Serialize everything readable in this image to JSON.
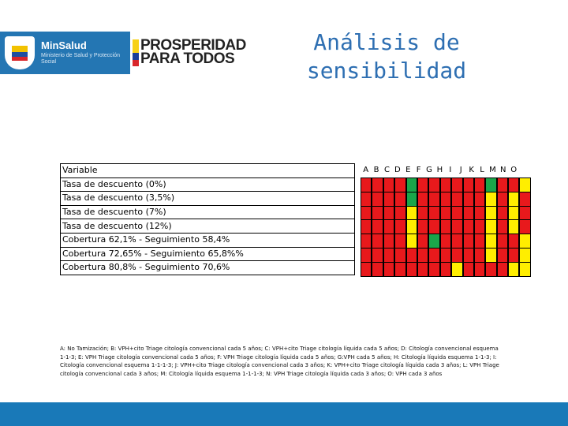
{
  "logo": {
    "minsalud_name": "MinSalud",
    "minsalud_sub": "Ministerio de Salud y Protección Social",
    "pp_line1": "PROSPERIDAD",
    "pp_line2": "PARA TODOS"
  },
  "title": {
    "line1": "Análisis de",
    "line2": "sensibilidad"
  },
  "variables": {
    "header": "Variable",
    "rows": [
      "Tasa de descuento (0%)",
      "Tasa de descuento (3,5%)",
      "Tasa de descuento (7%)",
      "Tasa de descuento (12%)",
      "Cobertura 62,1% - Seguimiento 58,4%",
      "Cobertura 72,65% - Seguimiento 65,8%%",
      "Cobertura 80,8% - Seguimiento 70,6%"
    ]
  },
  "grid": {
    "columns": [
      "A",
      "B",
      "C",
      "D",
      "E",
      "F",
      "G",
      "H",
      "I",
      "J",
      "K",
      "L",
      "M",
      "N",
      "O"
    ],
    "colors": {
      "R": "#e8191c",
      "G": "#1aa64a",
      "Y": "#ffee00",
      "W": "#ffffff"
    },
    "rows": [
      [
        "R",
        "R",
        "R",
        "R",
        "G",
        "R",
        "R",
        "R",
        "R",
        "R",
        "R",
        "G",
        "R",
        "R",
        "Y"
      ],
      [
        "R",
        "R",
        "R",
        "R",
        "G",
        "R",
        "R",
        "R",
        "R",
        "R",
        "R",
        "Y",
        "R",
        "Y",
        "R"
      ],
      [
        "R",
        "R",
        "R",
        "R",
        "Y",
        "R",
        "R",
        "R",
        "R",
        "R",
        "R",
        "Y",
        "R",
        "Y",
        "R"
      ],
      [
        "R",
        "R",
        "R",
        "R",
        "Y",
        "R",
        "R",
        "R",
        "R",
        "R",
        "R",
        "Y",
        "R",
        "Y",
        "R"
      ],
      [
        "R",
        "R",
        "R",
        "R",
        "Y",
        "R",
        "G",
        "R",
        "R",
        "R",
        "R",
        "Y",
        "R",
        "R",
        "Y"
      ],
      [
        "R",
        "R",
        "R",
        "R",
        "R",
        "R",
        "R",
        "R",
        "R",
        "R",
        "R",
        "Y",
        "R",
        "R",
        "Y"
      ],
      [
        "R",
        "R",
        "R",
        "R",
        "R",
        "R",
        "R",
        "R",
        "Y",
        "R",
        "R",
        "R",
        "R",
        "Y",
        "Y"
      ]
    ]
  },
  "footnote": "A: No Tamización; B: VPH+cito Triage citología convencional cada 5 años; C: VPH+cito Triage citología líquida cada 5 años; D: Citología convencional esquema 1-1-3; E: VPH Triage citología convencional cada 5 años; F: VPH Triage citología líquida cada 5 años; G:VPH cada 5 años; H: Citología líquida esquema 1-1-3; I: Citología convencional esquema 1-1-1-3; J: VPH+cito Triage citología convencional cada 3 años; K: VPH+cito Triage citología líquida cada 3 años; L: VPH Triage citología convencional cada 3 años; M: Citología líquida esquema 1-1-1-3; N: VPH Triage citología líquida cada 3 años; O: VPH cada 3 años"
}
